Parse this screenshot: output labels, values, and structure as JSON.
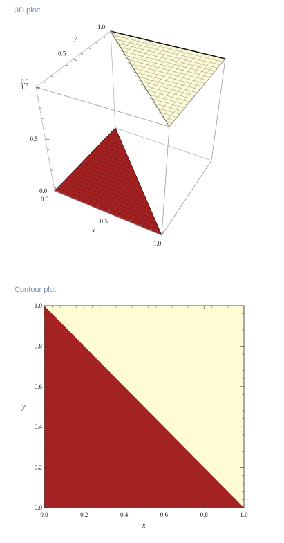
{
  "pods": [
    {
      "title": "3D plot:"
    },
    {
      "title": "Contour plot:"
    }
  ],
  "colors": {
    "lower_surface": "#a52222",
    "upper_surface": "#fdfbd9",
    "mesh_lower": "#5a0d0d",
    "mesh_upper": "#6f6b4e",
    "pod_title": "#7b93b3"
  },
  "chart_data": [
    {
      "type": "surface",
      "x_ticks": [
        "0.0",
        "0.5",
        "1.0"
      ],
      "y_ticks": [
        "0.0",
        "0.5",
        "1.0"
      ],
      "z_ticks": [
        "0.0",
        "0.5",
        "1.0"
      ],
      "xlabel": "x",
      "ylabel": "y",
      "xlim": [
        0,
        1
      ],
      "ylim": [
        0,
        1
      ],
      "zlim": [
        0,
        1
      ],
      "regions": [
        {
          "condition": "x + y < 1",
          "z": 0,
          "color": "#a52222"
        },
        {
          "condition": "x + y > 1",
          "z": 1,
          "color": "#fdfbd9"
        }
      ]
    },
    {
      "type": "contour",
      "x_ticks": [
        "0.0",
        "0.2",
        "0.4",
        "0.6",
        "0.8",
        "1.0"
      ],
      "y_ticks": [
        "0.0",
        "0.2",
        "0.4",
        "0.6",
        "0.8",
        "1.0"
      ],
      "xlabel": "x",
      "ylabel": "y",
      "xlim": [
        0,
        1
      ],
      "ylim": [
        0,
        1
      ],
      "regions": [
        {
          "condition": "x + y < 1",
          "color": "#a52222"
        },
        {
          "condition": "x + y > 1",
          "color": "#fffbd3"
        }
      ]
    }
  ]
}
